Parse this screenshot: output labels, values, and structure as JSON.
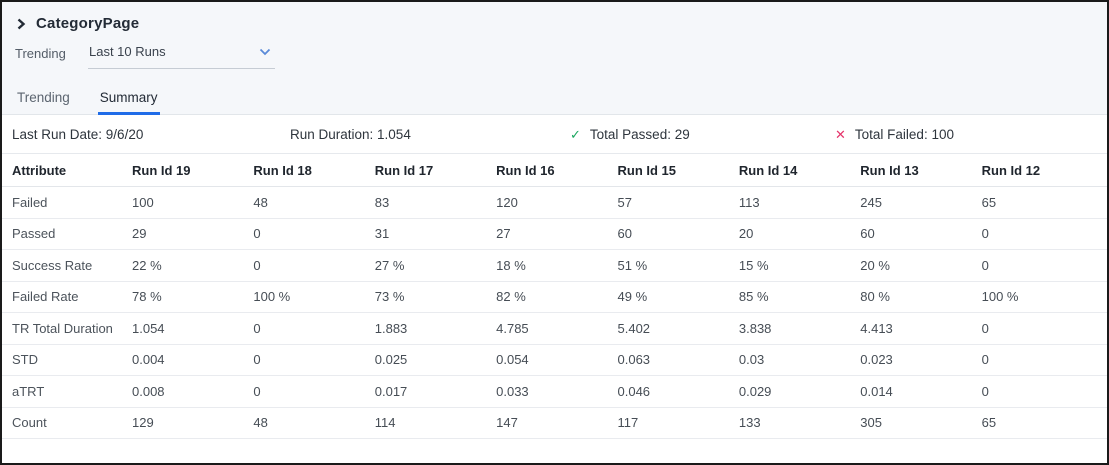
{
  "colors": {
    "accent_blue": "#1f6ce8",
    "passed_green": "#1aa75f",
    "failed_red": "#e5346b",
    "panel_bg": "#f5f7fa"
  },
  "header": {
    "title": "CategoryPage"
  },
  "filter": {
    "label": "Trending",
    "selected_value": "Last 10 Runs"
  },
  "tabs": [
    {
      "label": "Trending",
      "active": false
    },
    {
      "label": "Summary",
      "active": true
    }
  ],
  "summary_bar": {
    "last_run_date": "Last Run Date: 9/6/20",
    "run_duration": "Run Duration: 1.054",
    "passed_icon": "check-icon",
    "total_passed": "Total Passed: 29",
    "failed_icon": "x-icon",
    "total_failed": "Total Failed: 100"
  },
  "table": {
    "columns": [
      "Attribute",
      "Run Id 19",
      "Run Id 18",
      "Run Id 17",
      "Run Id 16",
      "Run Id 15",
      "Run Id 14",
      "Run Id 13",
      "Run Id 12"
    ],
    "rows": [
      {
        "attribute": "Failed",
        "values": [
          "100",
          "48",
          "83",
          "120",
          "57",
          "113",
          "245",
          "65"
        ]
      },
      {
        "attribute": "Passed",
        "values": [
          "29",
          "0",
          "31",
          "27",
          "60",
          "20",
          "60",
          "0"
        ]
      },
      {
        "attribute": "Success Rate",
        "values": [
          "22 %",
          "0",
          "27 %",
          "18 %",
          "51 %",
          "15 %",
          "20 %",
          "0"
        ]
      },
      {
        "attribute": "Failed Rate",
        "values": [
          "78 %",
          "100 %",
          "73 %",
          "82 %",
          "49 %",
          "85 %",
          "80 %",
          "100 %"
        ]
      },
      {
        "attribute": "TR Total Duration",
        "values": [
          "1.054",
          "0",
          "1.883",
          "4.785",
          "5.402",
          "3.838",
          "4.413",
          "0"
        ]
      },
      {
        "attribute": "STD",
        "values": [
          "0.004",
          "0",
          "0.025",
          "0.054",
          "0.063",
          "0.03",
          "0.023",
          "0"
        ]
      },
      {
        "attribute": "aTRT",
        "values": [
          "0.008",
          "0",
          "0.017",
          "0.033",
          "0.046",
          "0.029",
          "0.014",
          "0"
        ]
      },
      {
        "attribute": "Count",
        "values": [
          "129",
          "48",
          "114",
          "147",
          "117",
          "133",
          "305",
          "65"
        ]
      }
    ]
  }
}
